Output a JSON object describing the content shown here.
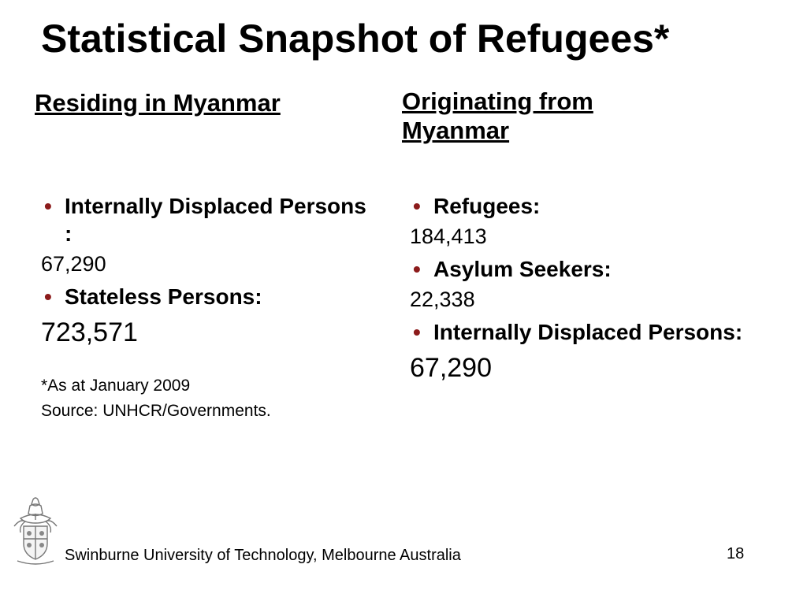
{
  "slide": {
    "title": "Statistical Snapshot of Refugees*",
    "left_heading": "Residing in Myanmar",
    "right_heading": "Originating from Myanmar",
    "left_items": [
      {
        "label": "Internally Displaced Persons :",
        "value": "67,290"
      },
      {
        "label": "Stateless Persons:",
        "value": "723,571"
      }
    ],
    "right_items": [
      {
        "label": "Refugees:",
        "value": "184,413"
      },
      {
        "label": "Asylum Seekers:",
        "value": "22,338"
      },
      {
        "label": "Internally Displaced Persons:",
        "value": "67,290"
      }
    ],
    "note_date": "*As at January 2009",
    "note_source": "Source: UNHCR/Governments.",
    "footer": "Swinburne University of Technology, Melbourne Australia",
    "page_number": "18"
  },
  "colors": {
    "bullet": "#8c1b1b"
  },
  "icons": {
    "crest": "university-crest-icon"
  }
}
